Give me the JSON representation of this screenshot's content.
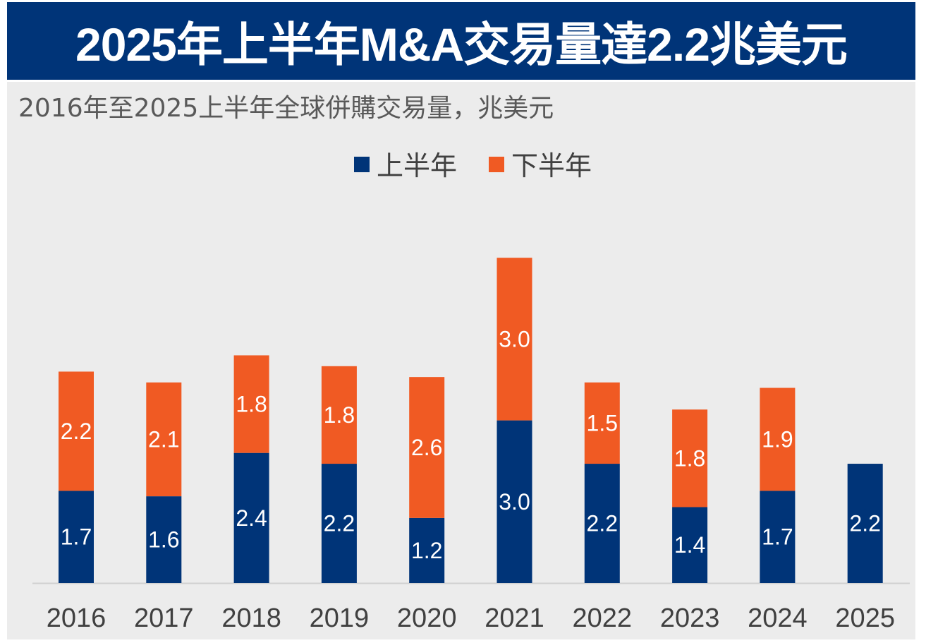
{
  "header": {
    "title": "2025年上半年M&A交易量達2.2兆美元"
  },
  "chart_data": {
    "type": "bar",
    "stacked": true,
    "title": "2016年至2025上半年全球併購交易量，兆美元",
    "categories": [
      "2016",
      "2017",
      "2018",
      "2019",
      "2020",
      "2021",
      "2022",
      "2023",
      "2024",
      "2025"
    ],
    "series": [
      {
        "name": "上半年",
        "color": "#003478",
        "values": [
          1.7,
          1.6,
          2.4,
          2.2,
          1.2,
          3.0,
          2.2,
          1.4,
          1.7,
          2.2
        ]
      },
      {
        "name": "下半年",
        "color": "#f05a23",
        "values": [
          2.2,
          2.1,
          1.8,
          1.8,
          2.6,
          3.0,
          1.5,
          1.8,
          1.9,
          null
        ]
      }
    ],
    "xlabel": "",
    "ylabel": "",
    "ylim": [
      0,
      6.5
    ],
    "grid": false,
    "legend": "top-center"
  }
}
